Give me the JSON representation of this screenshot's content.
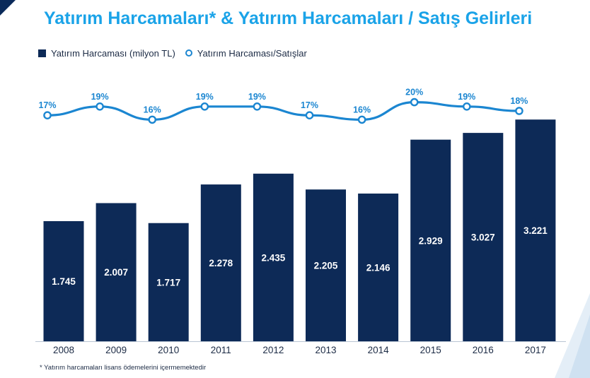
{
  "title": "Yatırım Harcamaları* & Yatırım Harcamaları / Satış Gelirleri",
  "legend": {
    "bars": "Yatırım Harcaması (milyon TL)",
    "line": "Yatırım Harcaması/Satışlar"
  },
  "footnote": "* Yatırım harcamaları lisans ödemelerini içermemektedir",
  "colors": {
    "title": "#1aa3e8",
    "bar": "#0d2a57",
    "line": "#1b86d1",
    "bar_label": "#ffffff",
    "text": "#1c2b45"
  },
  "chart_data": {
    "type": "bar",
    "title": "Yatırım Harcamaları* & Yatırım Harcamaları / Satış Gelirleri",
    "categories": [
      "2008",
      "2009",
      "2010",
      "2011",
      "2012",
      "2013",
      "2014",
      "2015",
      "2016",
      "2017"
    ],
    "series": [
      {
        "name": "Yatırım Harcaması (milyon TL)",
        "type": "bar",
        "values": [
          1745,
          2007,
          1717,
          2278,
          2435,
          2205,
          2146,
          2929,
          3027,
          3221
        ],
        "labels": [
          "1.745",
          "2.007",
          "1.717",
          "2.278",
          "2.435",
          "2.205",
          "2.146",
          "2.929",
          "3.027",
          "3.221"
        ]
      },
      {
        "name": "Yatırım Harcaması/Satışlar",
        "type": "line",
        "values": [
          17,
          19,
          16,
          19,
          19,
          17,
          16,
          20,
          19,
          18
        ],
        "labels": [
          "17%",
          "19%",
          "16%",
          "19%",
          "19%",
          "17%",
          "16%",
          "20%",
          "19%",
          "18%"
        ]
      }
    ],
    "xlabel": "",
    "ylabel": "",
    "ylim": [
      0,
      3100
    ],
    "line_ylim": [
      13,
      23
    ],
    "grid": false,
    "legend_position": "top-left"
  }
}
